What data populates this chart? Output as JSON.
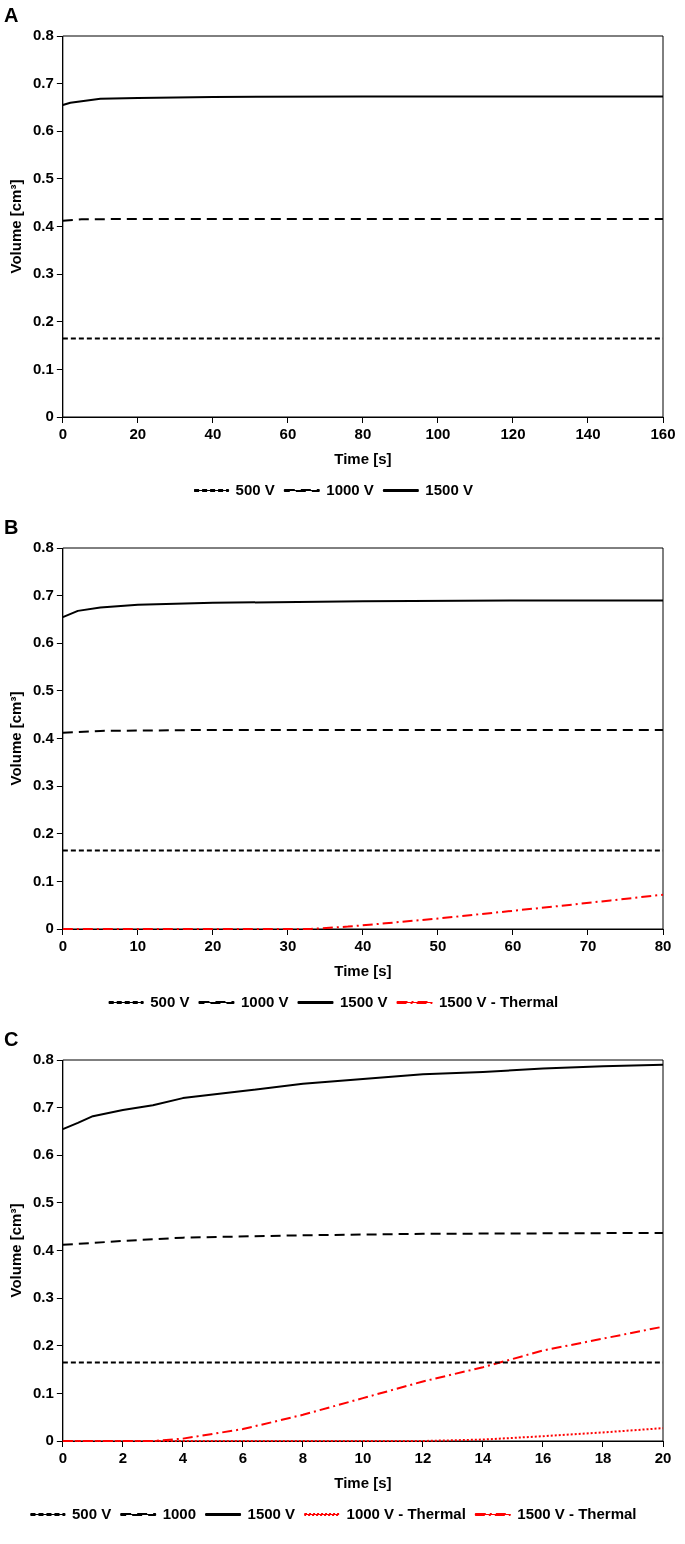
{
  "chart_data": [
    {
      "type": "line",
      "title": "A",
      "xlabel": "Time [s]",
      "ylabel": "Volume [cm³]",
      "xlim": [
        0,
        160
      ],
      "xticks": [
        0,
        20,
        40,
        60,
        80,
        100,
        120,
        140,
        160
      ],
      "ylim": [
        0,
        0.8
      ],
      "yticks": [
        0,
        0.1,
        0.2,
        0.3,
        0.4,
        0.5,
        0.6,
        0.7,
        0.8
      ],
      "grid": false,
      "legend": "bottom",
      "marker": "none",
      "series": [
        {
          "name": "500 V",
          "color": "#000000",
          "line_style": "dashed",
          "x": [
            0,
            160
          ],
          "values": [
            0.165,
            0.165
          ]
        },
        {
          "name": "1000 V",
          "color": "#000000",
          "line_style": "longdash",
          "x": [
            0,
            5,
            20,
            160
          ],
          "values": [
            0.412,
            0.415,
            0.416,
            0.416
          ]
        },
        {
          "name": "1500 V",
          "color": "#000000",
          "line_style": "solid",
          "x": [
            0,
            2,
            5,
            10,
            20,
            40,
            80,
            160
          ],
          "values": [
            0.655,
            0.66,
            0.663,
            0.668,
            0.67,
            0.672,
            0.673,
            0.673
          ]
        }
      ]
    },
    {
      "type": "line",
      "title": "B",
      "xlabel": "Time [s]",
      "ylabel": "Volume [cm³]",
      "xlim": [
        0,
        80
      ],
      "xticks": [
        0,
        10,
        20,
        30,
        40,
        50,
        60,
        70,
        80
      ],
      "ylim": [
        0,
        0.8
      ],
      "yticks": [
        0,
        0.1,
        0.2,
        0.3,
        0.4,
        0.5,
        0.6,
        0.7,
        0.8
      ],
      "grid": false,
      "legend": "bottom",
      "marker": "none",
      "series": [
        {
          "name": "500 V",
          "color": "#000000",
          "line_style": "dashed",
          "x": [
            0,
            80
          ],
          "values": [
            0.165,
            0.165
          ]
        },
        {
          "name": "1000 V",
          "color": "#000000",
          "line_style": "longdash",
          "x": [
            0,
            5,
            20,
            80
          ],
          "values": [
            0.412,
            0.416,
            0.418,
            0.418
          ]
        },
        {
          "name": "1500 V",
          "color": "#000000",
          "line_style": "solid",
          "x": [
            0,
            2,
            5,
            10,
            20,
            40,
            60,
            80
          ],
          "values": [
            0.655,
            0.668,
            0.675,
            0.681,
            0.685,
            0.688,
            0.69,
            0.69
          ]
        },
        {
          "name": "1500 V - Thermal",
          "color": "#ff0000",
          "line_style": "dashdot",
          "x": [
            0,
            33,
            38,
            43,
            50,
            58,
            66,
            73,
            80
          ],
          "values": [
            0,
            0,
            0.005,
            0.012,
            0.022,
            0.035,
            0.048,
            0.06,
            0.072
          ]
        }
      ]
    },
    {
      "type": "line",
      "title": "C",
      "xlabel": "Time [s]",
      "ylabel": "Volume [cm³]",
      "xlim": [
        0,
        20
      ],
      "xticks": [
        0,
        2,
        4,
        6,
        8,
        10,
        12,
        14,
        16,
        18,
        20
      ],
      "ylim": [
        0,
        0.8
      ],
      "yticks": [
        0,
        0.1,
        0.2,
        0.3,
        0.4,
        0.5,
        0.6,
        0.7,
        0.8
      ],
      "grid": false,
      "legend": "bottom",
      "marker": "none",
      "series": [
        {
          "name": "500 V",
          "color": "#000000",
          "line_style": "dashed",
          "x": [
            0,
            20
          ],
          "values": [
            0.165,
            0.165
          ]
        },
        {
          "name": "1000",
          "color": "#000000",
          "line_style": "longdash",
          "x": [
            0,
            2,
            4,
            8,
            12,
            20
          ],
          "values": [
            0.412,
            0.42,
            0.427,
            0.432,
            0.435,
            0.437
          ]
        },
        {
          "name": "1500 V",
          "color": "#000000",
          "line_style": "solid",
          "x": [
            0,
            0.5,
            1,
            2,
            3,
            4,
            6,
            8,
            10,
            12,
            14,
            16,
            18,
            20
          ],
          "values": [
            0.655,
            0.668,
            0.682,
            0.695,
            0.705,
            0.72,
            0.735,
            0.75,
            0.76,
            0.77,
            0.775,
            0.782,
            0.787,
            0.79
          ]
        },
        {
          "name": "1000 V - Thermal",
          "color": "#ff0000",
          "line_style": "dotted",
          "x": [
            0,
            12,
            14,
            16,
            18,
            20
          ],
          "values": [
            0,
            0,
            0.003,
            0.01,
            0.018,
            0.027
          ]
        },
        {
          "name": "1500 V - Thermal",
          "color": "#ff0000",
          "line_style": "dashdot",
          "x": [
            0,
            3,
            4,
            6,
            8,
            10,
            12,
            14,
            16,
            18,
            20
          ],
          "values": [
            0,
            0,
            0.005,
            0.025,
            0.055,
            0.09,
            0.125,
            0.155,
            0.19,
            0.215,
            0.24
          ]
        }
      ]
    }
  ]
}
